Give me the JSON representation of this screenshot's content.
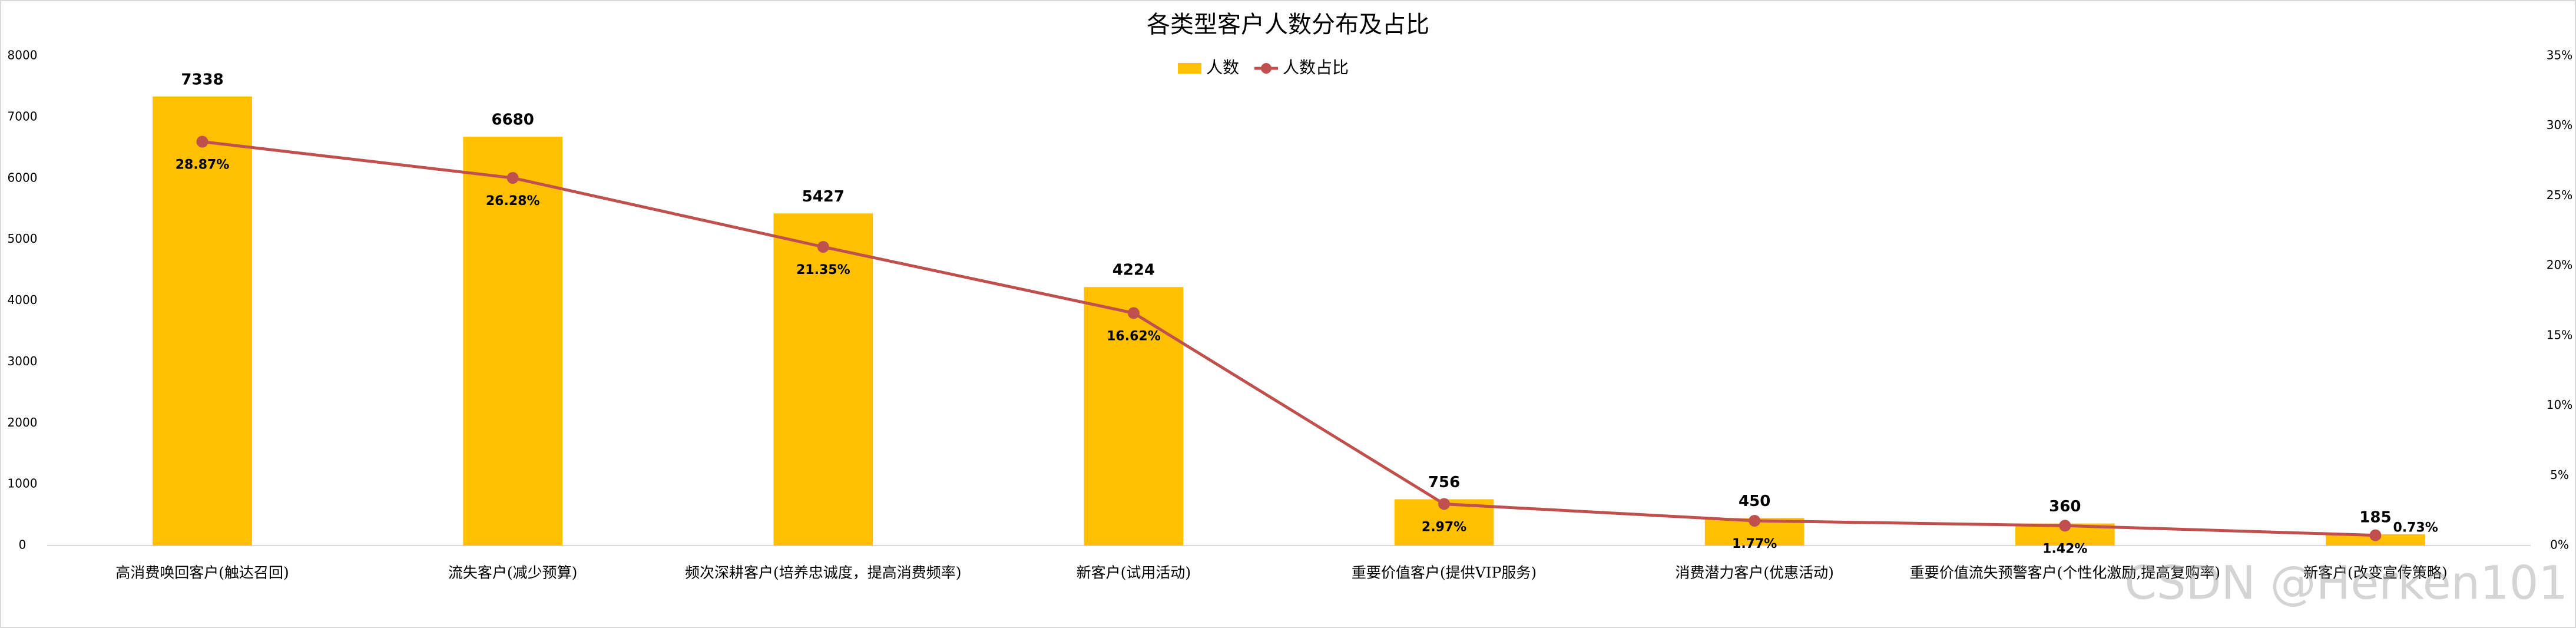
{
  "chart_data": {
    "type": "combo",
    "title": "各类型客户人数分布及占比",
    "categories": [
      "高消费唤回客户(触达召回)",
      "流失客户(减少预算)",
      "频次深耕客户(培养忠诚度，提高消费频率)",
      "新客户(试用活动)",
      "重要价值客户(提供VIP服务)",
      "消费潜力客户(优惠活动)",
      "重要价值流失预警客户(个性化激励,提高复购率)",
      "新客户(改变宣传策略)"
    ],
    "series": [
      {
        "name": "人数",
        "type": "bar",
        "color": "#FFC000",
        "values": [
          7338,
          6680,
          5427,
          4224,
          756,
          450,
          360,
          185
        ]
      },
      {
        "name": "人数占比",
        "type": "line",
        "axis": "y2",
        "color": "#C0504D",
        "values": [
          28.87,
          26.28,
          21.35,
          16.62,
          2.97,
          1.77,
          1.42,
          0.73
        ],
        "value_labels": [
          "28.87%",
          "26.28%",
          "21.35%",
          "16.62%",
          "2.97%",
          "1.77%",
          "1.42%",
          "0.73%"
        ]
      }
    ],
    "ylim": [
      0,
      8000
    ],
    "yticks": [
      0,
      1000,
      2000,
      3000,
      4000,
      5000,
      6000,
      7000,
      8000
    ],
    "y2lim": [
      0,
      35
    ],
    "y2ticks": [
      {
        "value": 0,
        "label": "0%"
      },
      {
        "value": 5,
        "label": "5%"
      },
      {
        "value": 10,
        "label": "10%"
      },
      {
        "value": 15,
        "label": "15%"
      },
      {
        "value": 20,
        "label": "20%"
      },
      {
        "value": 25,
        "label": "25%"
      },
      {
        "value": 30,
        "label": "30%"
      },
      {
        "value": 35,
        "label": "35%"
      }
    ],
    "grid": false,
    "legend": "top",
    "watermark": "CSDN @Herken101"
  }
}
